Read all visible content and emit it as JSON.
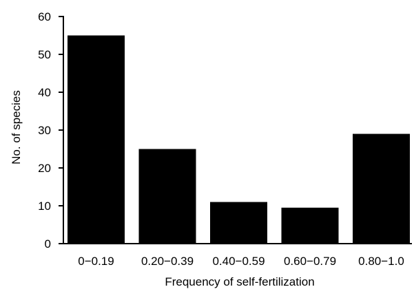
{
  "chart_data": {
    "type": "bar",
    "categories": [
      "0−0.19",
      "0.20−0.39",
      "0.40−0.59",
      "0.60−0.79",
      "0.80−1.0"
    ],
    "values": [
      55,
      25,
      11,
      9.5,
      29
    ],
    "xlabel": "Frequency of self-fertilization",
    "ylabel": "No. of species",
    "ylim": [
      0,
      60
    ],
    "yticks": [
      "0",
      "10",
      "20",
      "30",
      "40",
      "50",
      "60"
    ],
    "grid": false,
    "bar_color": "#000000"
  }
}
